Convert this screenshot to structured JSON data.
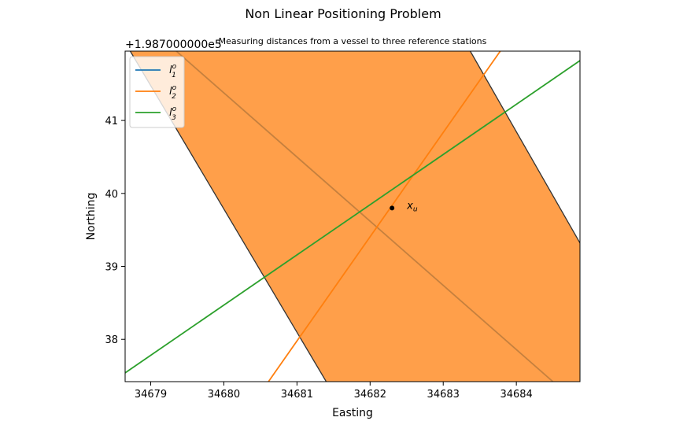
{
  "chart_data": {
    "type": "line",
    "title": "Non Linear Positioning Problem",
    "subtitle": "Measuring distances from a vessel to three reference stations",
    "xlabel": "Easting",
    "ylabel": "Northing",
    "y_offset_label": "+1.987000000e5",
    "xlim": [
      34678.65,
      34684.87
    ],
    "ylim": [
      37.42,
      41.95
    ],
    "x_ticks": [
      34679,
      34680,
      34681,
      34682,
      34683,
      34684
    ],
    "y_ticks": [
      38,
      39,
      40,
      41
    ],
    "grid": false,
    "legend_position": "top-left",
    "band": {
      "name": "l1 uncertainty band",
      "color": "#ff7f0e",
      "opacity": 0.75,
      "edge_color": "#333333",
      "edge1": [
        [
          34678.72,
          41.95
        ],
        [
          34681.4,
          37.42
        ]
      ],
      "edge2": [
        [
          34683.37,
          41.95
        ],
        [
          34684.87,
          39.32
        ]
      ]
    },
    "series": [
      {
        "name": "l_1^o",
        "label_main": "l",
        "label_sub": "1",
        "label_sup": "o",
        "color": "#1f77b4",
        "points": [
          [
            34679.35,
            41.95
          ],
          [
            34684.5,
            37.42
          ]
        ]
      },
      {
        "name": "l_2^o",
        "label_main": "l",
        "label_sub": "2",
        "label_sup": "o",
        "color": "#ff7f0e",
        "points": [
          [
            34680.61,
            37.42
          ],
          [
            34683.78,
            41.95
          ]
        ]
      },
      {
        "name": "l_3^o",
        "label_main": "l",
        "label_sub": "3",
        "label_sup": "o",
        "color": "#2ca02c",
        "points": [
          [
            34678.65,
            37.54
          ],
          [
            34684.87,
            41.82
          ]
        ]
      }
    ],
    "annotations": [
      {
        "name": "x_u",
        "label_main": "x",
        "label_sub": "u",
        "x": 34682.3,
        "y": 39.8,
        "color": "#000000"
      }
    ]
  }
}
